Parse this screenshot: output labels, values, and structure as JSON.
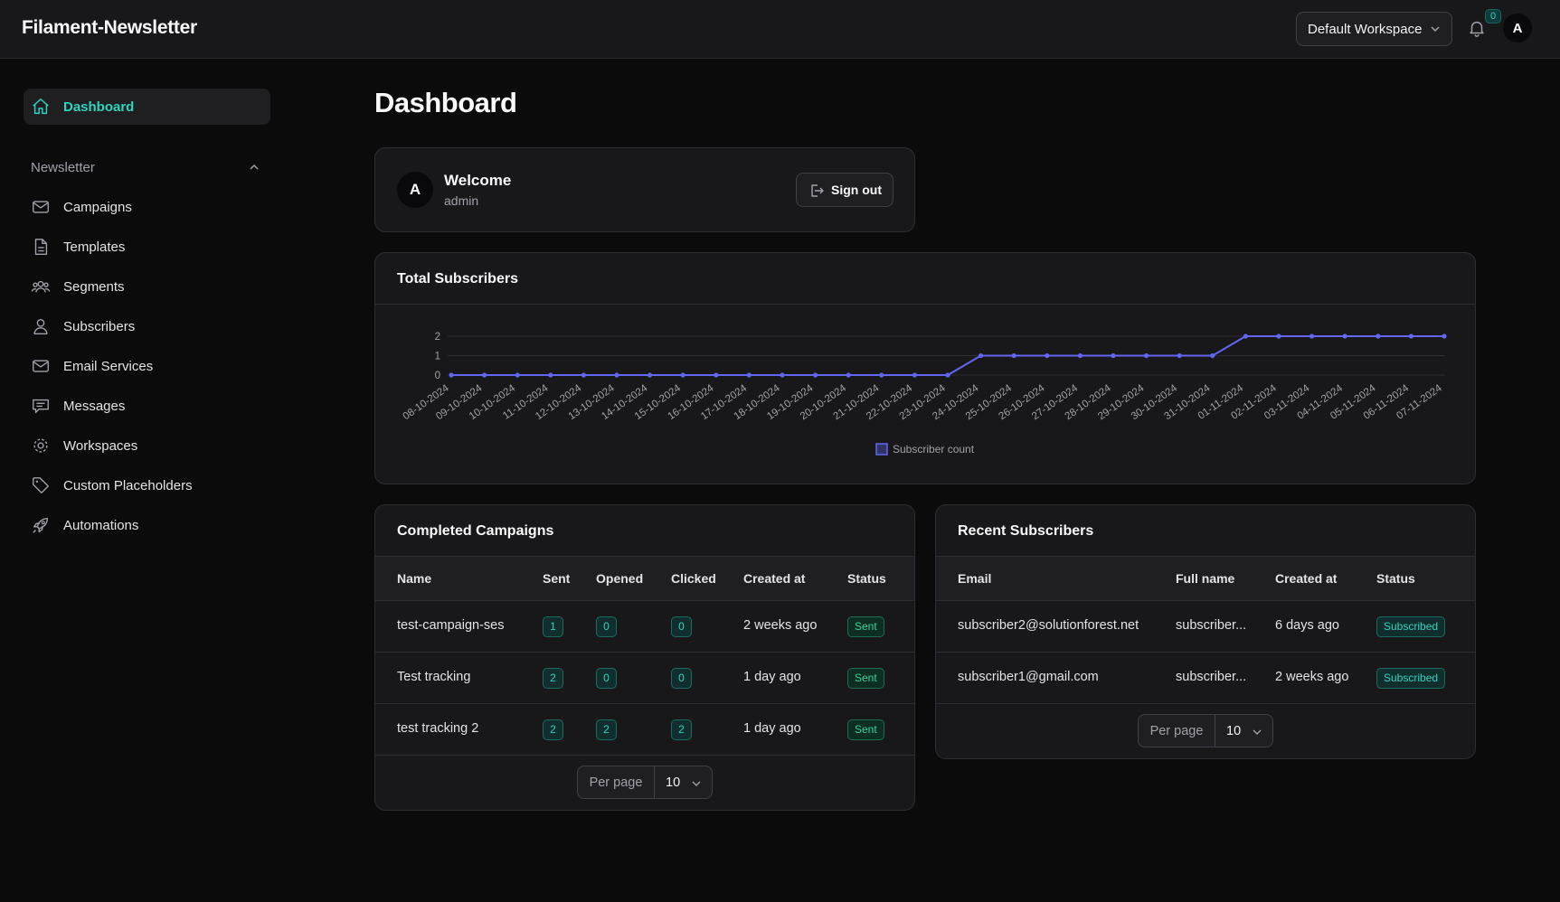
{
  "app": {
    "brand": "Filament-Newsletter"
  },
  "topbar": {
    "workspace": "Default Workspace",
    "notifications_count": "0",
    "avatar_initial": "A"
  },
  "sidebar": {
    "active": {
      "label": "Dashboard",
      "icon": "home-icon"
    },
    "group_label": "Newsletter",
    "items": [
      {
        "label": "Campaigns",
        "icon": "mail-icon"
      },
      {
        "label": "Templates",
        "icon": "document-icon"
      },
      {
        "label": "Segments",
        "icon": "users-group-icon"
      },
      {
        "label": "Subscribers",
        "icon": "user-icon"
      },
      {
        "label": "Email Services",
        "icon": "envelope-icon"
      },
      {
        "label": "Messages",
        "icon": "chat-icon"
      },
      {
        "label": "Workspaces",
        "icon": "cog-icon"
      },
      {
        "label": "Custom Placeholders",
        "icon": "tag-icon"
      },
      {
        "label": "Automations",
        "icon": "rocket-icon"
      }
    ]
  },
  "page": {
    "title": "Dashboard"
  },
  "welcome": {
    "avatar_initial": "A",
    "title": "Welcome",
    "user": "admin",
    "sign_out": "Sign out"
  },
  "chart_card": {
    "title": "Total Subscribers"
  },
  "chart_data": {
    "type": "line",
    "x": [
      "08-10-2024",
      "09-10-2024",
      "10-10-2024",
      "11-10-2024",
      "12-10-2024",
      "13-10-2024",
      "14-10-2024",
      "15-10-2024",
      "16-10-2024",
      "17-10-2024",
      "18-10-2024",
      "19-10-2024",
      "20-10-2024",
      "21-10-2024",
      "22-10-2024",
      "23-10-2024",
      "24-10-2024",
      "25-10-2024",
      "26-10-2024",
      "27-10-2024",
      "28-10-2024",
      "29-10-2024",
      "30-10-2024",
      "31-10-2024",
      "01-11-2024",
      "02-11-2024",
      "03-11-2024",
      "04-11-2024",
      "05-11-2024",
      "06-11-2024",
      "07-11-2024"
    ],
    "series": [
      {
        "name": "Subscriber count",
        "values": [
          0,
          0,
          0,
          0,
          0,
          0,
          0,
          0,
          0,
          0,
          0,
          0,
          0,
          0,
          0,
          0,
          1,
          1,
          1,
          1,
          1,
          1,
          1,
          1,
          2,
          2,
          2,
          2,
          2,
          2,
          2
        ]
      }
    ],
    "yticks": [
      "0",
      "1",
      "2"
    ],
    "ylim": [
      0,
      2
    ],
    "legend": "bottom-center",
    "color": "#6366f1"
  },
  "campaigns": {
    "title": "Completed Campaigns",
    "columns": [
      "Name",
      "Sent",
      "Opened",
      "Clicked",
      "Created at",
      "Status"
    ],
    "rows": [
      {
        "name": "test-campaign-ses",
        "sent": "1",
        "opened": "0",
        "clicked": "0",
        "created": "2 weeks ago",
        "status": "Sent"
      },
      {
        "name": "Test tracking",
        "sent": "2",
        "opened": "0",
        "clicked": "0",
        "created": "1 day ago",
        "status": "Sent"
      },
      {
        "name": "test tracking 2",
        "sent": "2",
        "opened": "2",
        "clicked": "2",
        "created": "1 day ago",
        "status": "Sent"
      }
    ],
    "per_page_label": "Per page",
    "per_page_value": "10"
  },
  "subscribers": {
    "title": "Recent Subscribers",
    "columns": [
      "Email",
      "Full name",
      "Created at",
      "Status"
    ],
    "rows": [
      {
        "email": "subscriber2@solutionforest.net",
        "name": "subscriber...",
        "created": "6 days ago",
        "status": "Subscribed"
      },
      {
        "email": "subscriber1@gmail.com",
        "name": "subscriber...",
        "created": "2 weeks ago",
        "status": "Subscribed"
      }
    ],
    "per_page_label": "Per page",
    "per_page_value": "10"
  }
}
